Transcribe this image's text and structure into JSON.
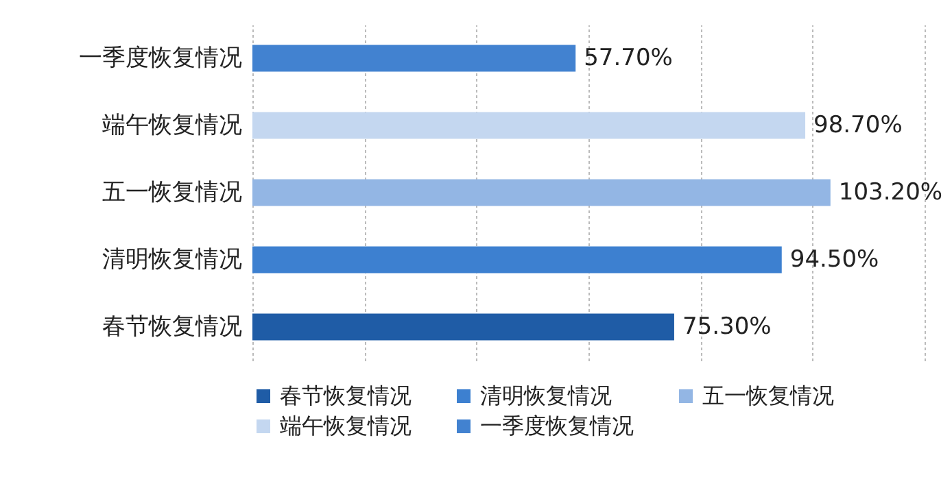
{
  "chart_data": {
    "type": "bar",
    "orientation": "horizontal",
    "categories": [
      "一季度恢复情况",
      "端午恢复情况",
      "五一恢复情况",
      "清明恢复情况",
      "春节恢复情况"
    ],
    "series": [
      {
        "name": "春节恢复情况",
        "color": "#1f5ca6",
        "values": [
          null,
          null,
          null,
          null,
          75.3
        ],
        "value_labels": [
          null,
          null,
          null,
          null,
          "75.30%"
        ]
      },
      {
        "name": "清明恢复情况",
        "color": "#3d80d0",
        "values": [
          null,
          null,
          null,
          94.5,
          null
        ],
        "value_labels": [
          null,
          null,
          null,
          "94.50%",
          null
        ]
      },
      {
        "name": "五一恢复情况",
        "color": "#93b6e4",
        "values": [
          null,
          null,
          103.2,
          null,
          null
        ],
        "value_labels": [
          null,
          null,
          "103.20%",
          null,
          null
        ]
      },
      {
        "name": "端午恢复情况",
        "color": "#c4d7f0",
        "values": [
          null,
          98.7,
          null,
          null,
          null
        ],
        "value_labels": [
          null,
          "98.70%",
          null,
          null,
          null
        ]
      },
      {
        "name": "一季度恢复情况",
        "color": "#4282d0",
        "values": [
          57.7,
          null,
          null,
          null,
          null
        ],
        "value_labels": [
          "57.70%",
          null,
          null,
          null,
          null
        ]
      }
    ],
    "xlim": [
      0,
      120
    ],
    "xticks": [
      {
        "value": 0,
        "label": null
      },
      {
        "value": 20,
        "label": null
      },
      {
        "value": 40,
        "label": null
      },
      {
        "value": 60,
        "label": null
      },
      {
        "value": 80,
        "label": null
      },
      {
        "value": 100,
        "label": null
      },
      {
        "value": 120,
        "label": null
      }
    ],
    "tick_labels": "y",
    "grid": "x",
    "legend": "bottom"
  }
}
